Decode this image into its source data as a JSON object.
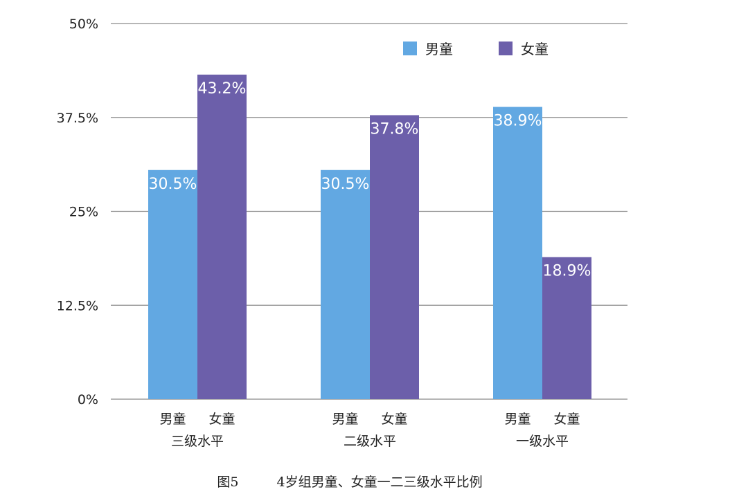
{
  "chart_data": {
    "type": "bar",
    "categories": [
      "三级水平",
      "二级水平",
      "一级水平"
    ],
    "series": [
      {
        "name": "男童",
        "values": [
          30.5,
          30.5,
          38.9
        ],
        "labels": [
          "30.5%",
          "30.5%",
          "38.9%"
        ]
      },
      {
        "name": "女童",
        "values": [
          43.2,
          37.8,
          18.9
        ],
        "labels": [
          "43.2%",
          "37.8%",
          "18.9%"
        ]
      }
    ],
    "bar_sub_labels": [
      "男童",
      "女童"
    ],
    "ylim": [
      0,
      50
    ],
    "yticks": [
      0,
      12.5,
      25,
      37.5,
      50
    ],
    "ytick_labels": [
      "0%",
      "12.5%",
      "25%",
      "37.5%",
      "50%"
    ],
    "grid": true,
    "legend_position": "top-right",
    "colors": [
      "#62A8E2",
      "#6C5FAA"
    ]
  },
  "caption": {
    "figure_number": "图5",
    "text": "4岁组男童、女童一二三级水平比例"
  }
}
